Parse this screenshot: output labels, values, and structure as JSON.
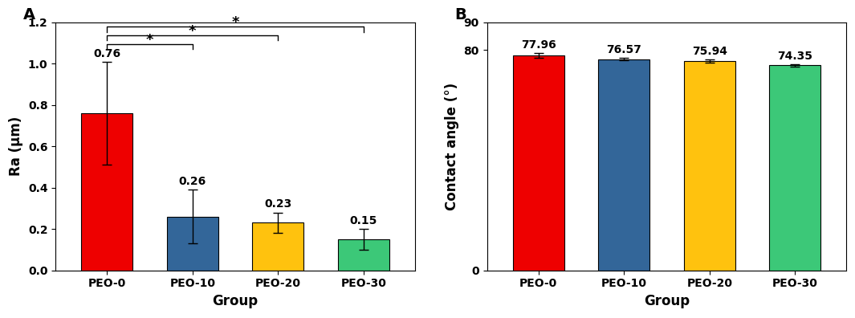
{
  "chart_data": [
    {
      "type": "bar",
      "title": "A",
      "x_label": "Group",
      "y_label": "Ra (μm)",
      "categories": [
        "PEO-0",
        "PEO-10",
        "PEO-20",
        "PEO-30"
      ],
      "values": [
        0.76,
        0.26,
        0.23,
        0.15
      ],
      "errors": [
        0.25,
        0.13,
        0.05,
        0.05
      ],
      "colors": [
        "#ee0000",
        "#336699",
        "#ffc20e",
        "#3cc878"
      ],
      "data_labels": true,
      "ylim": [
        0.0,
        1.2
      ],
      "yticks": [
        0.0,
        0.2,
        0.4,
        0.6,
        0.8,
        1.0,
        1.2
      ],
      "significance": [
        {
          "from": "PEO-0",
          "to": "PEO-10",
          "label": "*"
        },
        {
          "from": "PEO-0",
          "to": "PEO-20",
          "label": "*"
        },
        {
          "from": "PEO-0",
          "to": "PEO-30",
          "label": "*"
        }
      ]
    },
    {
      "type": "bar",
      "title": "B",
      "x_label": "Group",
      "y_label": "Contact angle (°)",
      "categories": [
        "PEO-0",
        "PEO-10",
        "PEO-20",
        "PEO-30"
      ],
      "values": [
        77.96,
        76.57,
        75.94,
        74.35
      ],
      "errors": [
        0.9,
        0.4,
        0.5,
        0.5
      ],
      "colors": [
        "#ee0000",
        "#336699",
        "#ffc20e",
        "#3cc878"
      ],
      "data_labels": true,
      "ylim": [
        0,
        90
      ],
      "yticks": [
        0,
        80,
        90
      ]
    }
  ]
}
